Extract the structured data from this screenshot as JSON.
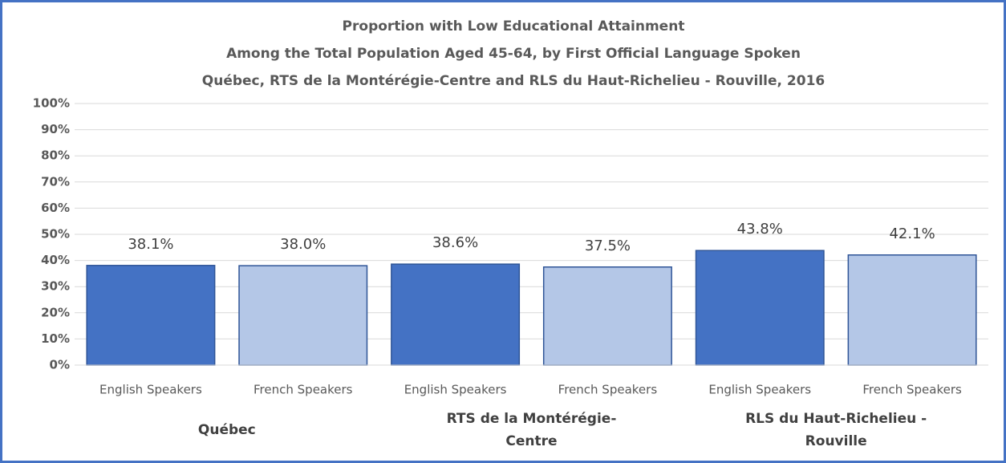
{
  "chart_data": {
    "type": "bar",
    "title": [
      "Proportion  with Low Educational Attainment",
      "Among the Total Population Aged 45-64, by First Official Language Spoken",
      "Québec, RTS de la Montérégie-Centre and RLS du Haut-Richelieu - Rouville, 2016"
    ],
    "categories": [
      "Québec",
      "RTS de la Montérégie-Centre",
      "RLS du Haut-Richelieu - Rouville"
    ],
    "series": [
      {
        "name": "English Speakers",
        "color": "#4472c4",
        "values": [
          38.1,
          38.6,
          43.8
        ],
        "value_labels": [
          "38.1%",
          "38.6%",
          "43.8%"
        ]
      },
      {
        "name": "French Speakers",
        "color": "#b4c7e7",
        "values": [
          38.0,
          37.5,
          42.1
        ],
        "value_labels": [
          "38.0%",
          "37.5%",
          "42.1%"
        ]
      }
    ],
    "edgecolor": "#2f5597",
    "ylim": [
      0,
      100
    ],
    "yticks": [
      {
        "value": 0,
        "label": "0%"
      },
      {
        "value": 10,
        "label": "10%"
      },
      {
        "value": 20,
        "label": "20%"
      },
      {
        "value": 30,
        "label": "30%"
      },
      {
        "value": 40,
        "label": "40%"
      },
      {
        "value": 50,
        "label": "50%"
      },
      {
        "value": 60,
        "label": "60%"
      },
      {
        "value": 70,
        "label": "70%"
      },
      {
        "value": 80,
        "label": "80%"
      },
      {
        "value": 90,
        "label": "90%"
      },
      {
        "value": 100,
        "label": "100%"
      }
    ],
    "grid": true
  }
}
